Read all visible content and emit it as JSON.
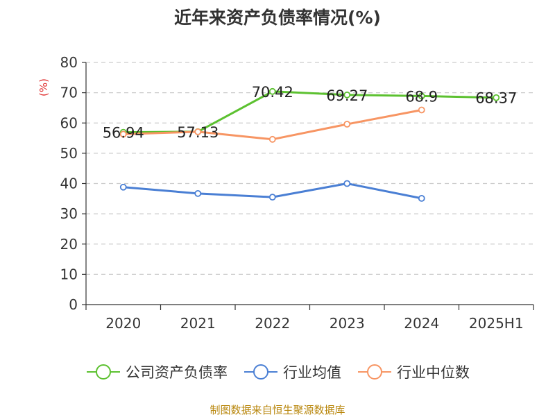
{
  "chart_data": {
    "type": "line",
    "title": "近年来资产负债率情况(%)",
    "ylabel": "(%)",
    "xlabel": "",
    "ylim": [
      0,
      80
    ],
    "yticks": [
      0,
      10,
      20,
      30,
      40,
      50,
      60,
      70,
      80
    ],
    "categories": [
      "2020",
      "2021",
      "2022",
      "2023",
      "2024",
      "2025H1"
    ],
    "grid": true,
    "legend_position": "bottom",
    "series": [
      {
        "name": "公司资产负债率",
        "color": "#5cc130",
        "values": [
          56.94,
          57.13,
          70.42,
          69.27,
          68.9,
          68.37
        ],
        "labels": [
          "56.94",
          "57.13",
          "70.42",
          "69.27",
          "68.9",
          "68.37"
        ]
      },
      {
        "name": "行业均值",
        "color": "#4a7fd4",
        "values": [
          38.8,
          36.7,
          35.5,
          40.0,
          35.1,
          null
        ]
      },
      {
        "name": "行业中位数",
        "color": "#f79563",
        "values": [
          56.3,
          57.1,
          54.6,
          59.6,
          64.3,
          null
        ]
      }
    ]
  },
  "source": "制图数据来自恒生聚源数据库"
}
